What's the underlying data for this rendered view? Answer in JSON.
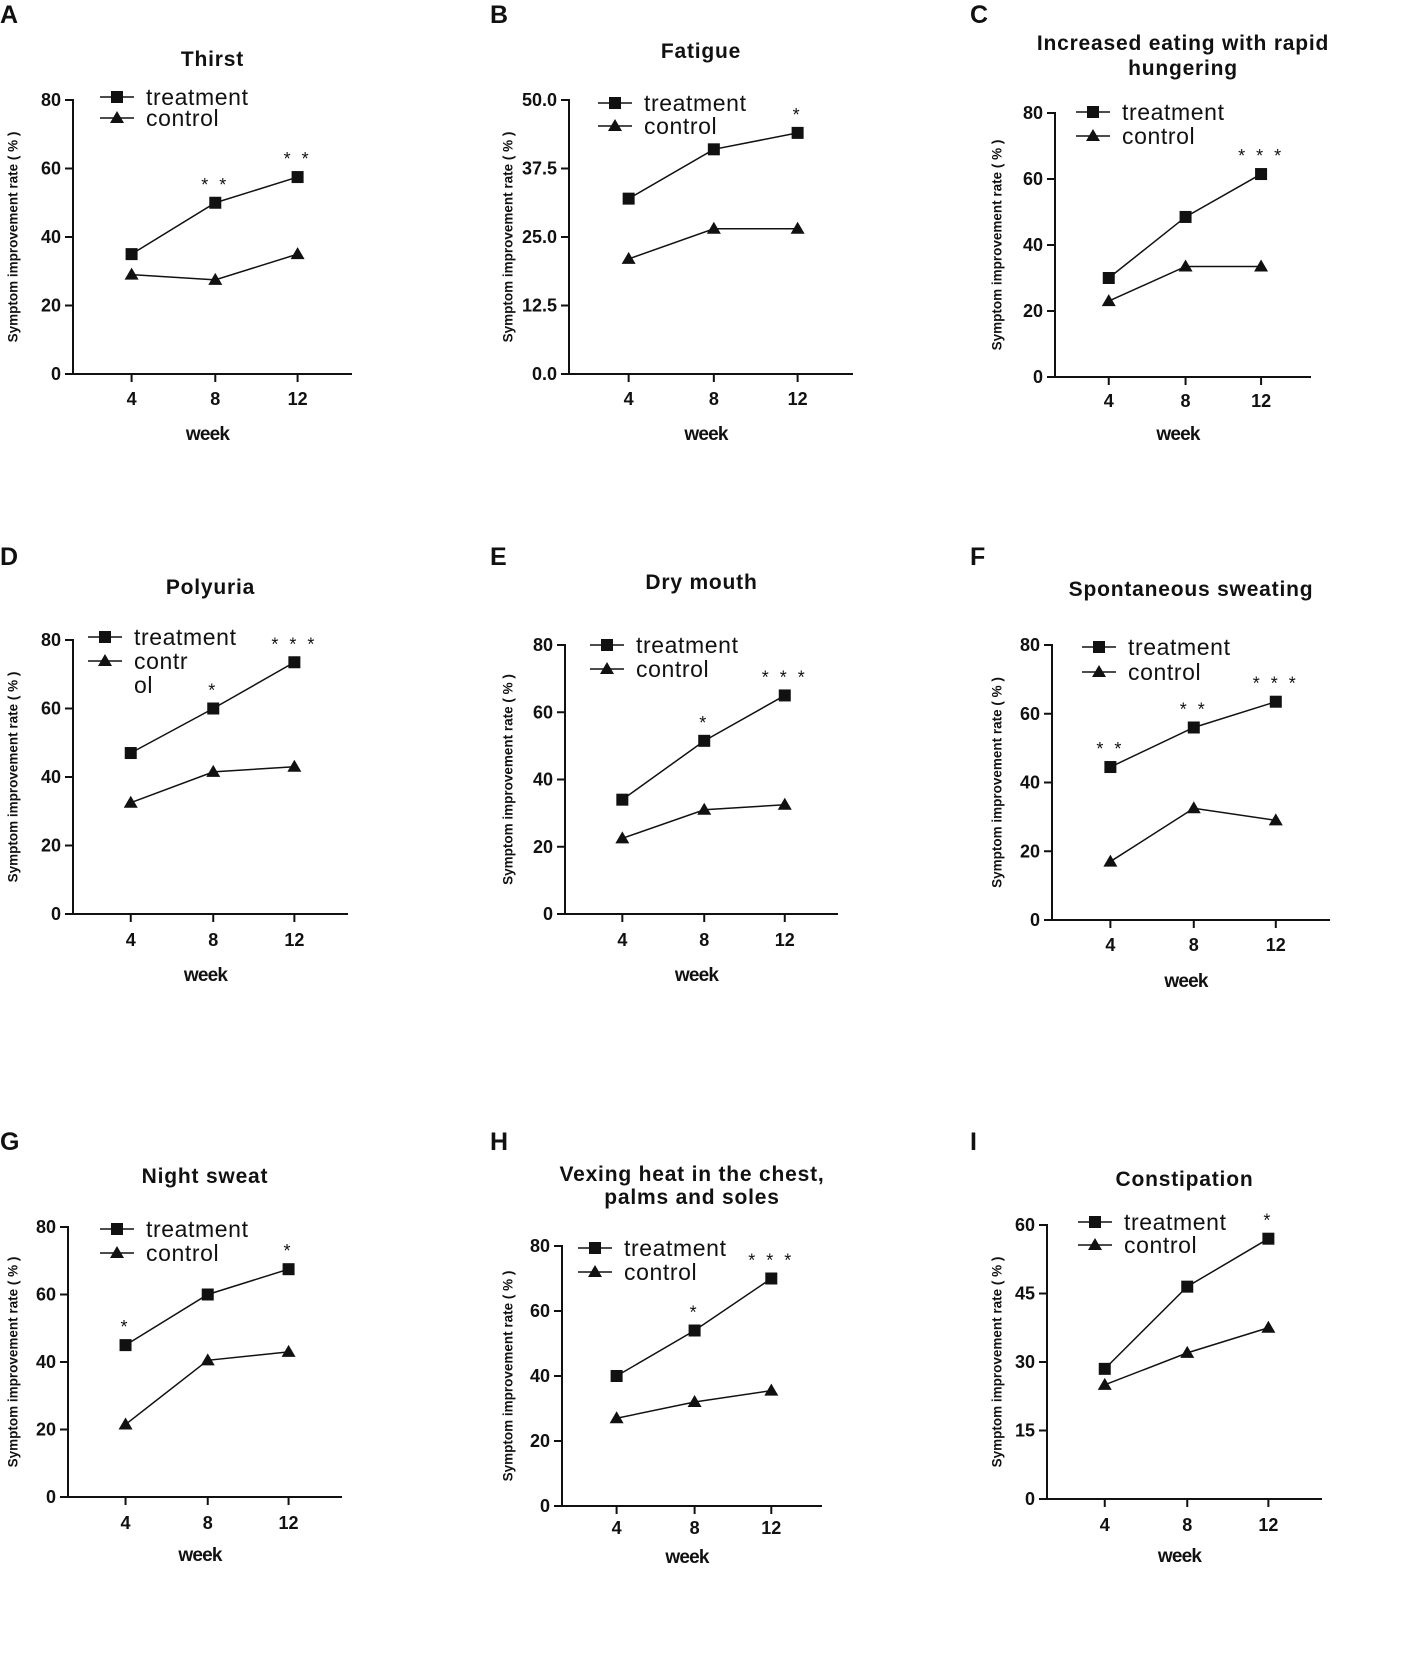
{
  "chart_data": [
    {
      "letter": "A",
      "type": "line",
      "title": [
        "Thirst"
      ],
      "xlabel": "week",
      "ylabel": "Symptom improvement rate ( % )",
      "categories": [
        "4",
        "8",
        "12"
      ],
      "ylim": [
        0,
        80
      ],
      "yticks": [
        "0",
        "20",
        "40",
        "60",
        "80"
      ],
      "legend_placement": "top-left",
      "series": [
        {
          "name": "treatment",
          "marker": "square",
          "values": [
            35,
            50,
            57.5
          ],
          "label_lines": [
            "treatment"
          ]
        },
        {
          "name": "control",
          "marker": "triangle",
          "values": [
            29,
            27.5,
            35
          ],
          "label_lines": [
            "control"
          ]
        }
      ],
      "annotations": [
        "",
        "* *",
        "* *"
      ]
    },
    {
      "letter": "B",
      "type": "line",
      "title": [
        "Fatigue"
      ],
      "xlabel": "week",
      "ylabel": "Symptom improvement rate ( % )",
      "categories": [
        "4",
        "8",
        "12"
      ],
      "ylim": [
        0,
        50
      ],
      "yticks": [
        "0.0",
        "12.5",
        "25.0",
        "37.5",
        "50.0"
      ],
      "legend_placement": "top-left",
      "series": [
        {
          "name": "treatment",
          "marker": "square",
          "values": [
            32,
            41,
            44
          ],
          "label_lines": [
            "treatment"
          ]
        },
        {
          "name": "control",
          "marker": "triangle",
          "values": [
            21,
            26.5,
            26.5
          ],
          "label_lines": [
            "control"
          ]
        }
      ],
      "annotations": [
        "",
        "",
        "*"
      ]
    },
    {
      "letter": "C",
      "type": "line",
      "title": [
        "Increased eating with rapid",
        "hungering"
      ],
      "xlabel": "week",
      "ylabel": "Symptom improvement rate ( % )",
      "categories": [
        "4",
        "8",
        "12"
      ],
      "ylim": [
        0,
        80
      ],
      "yticks": [
        "0",
        "20",
        "40",
        "60",
        "80"
      ],
      "legend_placement": "top-left",
      "series": [
        {
          "name": "treatment",
          "marker": "square",
          "values": [
            30,
            48.5,
            61.5
          ],
          "label_lines": [
            "treatment"
          ]
        },
        {
          "name": "control",
          "marker": "triangle",
          "values": [
            23,
            33.5,
            33.5
          ],
          "label_lines": [
            "control"
          ]
        }
      ],
      "annotations": [
        "",
        "",
        "* * *"
      ]
    },
    {
      "letter": "D",
      "type": "line",
      "title": [
        "Polyuria"
      ],
      "xlabel": "week",
      "ylabel": "Symptom improvement rate ( % )",
      "categories": [
        "4",
        "8",
        "12"
      ],
      "ylim": [
        0,
        80
      ],
      "yticks": [
        "0",
        "20",
        "40",
        "60",
        "80"
      ],
      "legend_placement": "top-left",
      "series": [
        {
          "name": "treatment",
          "marker": "square",
          "values": [
            47,
            60,
            73.5
          ],
          "label_lines": [
            "treatment"
          ]
        },
        {
          "name": "control",
          "marker": "triangle",
          "values": [
            32.5,
            41.5,
            43
          ],
          "label_lines": [
            "contr",
            "ol"
          ]
        }
      ],
      "annotations": [
        "",
        "*",
        "* * *"
      ]
    },
    {
      "letter": "E",
      "type": "line",
      "title": [
        "Dry mouth"
      ],
      "xlabel": "week",
      "ylabel": "Symptom improvement rate ( % )",
      "categories": [
        "4",
        "8",
        "12"
      ],
      "ylim": [
        0,
        80
      ],
      "yticks": [
        "0",
        "20",
        "40",
        "60",
        "80"
      ],
      "legend_placement": "top-left",
      "series": [
        {
          "name": "treatment",
          "marker": "square",
          "values": [
            34,
            51.5,
            65
          ],
          "label_lines": [
            "treatment"
          ]
        },
        {
          "name": "control",
          "marker": "triangle",
          "values": [
            22.5,
            31,
            32.5
          ],
          "label_lines": [
            "control"
          ]
        }
      ],
      "annotations": [
        "",
        "*",
        "* * *"
      ]
    },
    {
      "letter": "F",
      "type": "line",
      "title": [
        "Spontaneous sweating"
      ],
      "xlabel": "week",
      "ylabel": "Symptom improvement rate ( % )",
      "categories": [
        "4",
        "8",
        "12"
      ],
      "ylim": [
        0,
        80
      ],
      "yticks": [
        "0",
        "20",
        "40",
        "60",
        "80"
      ],
      "legend_placement": "top-left",
      "series": [
        {
          "name": "treatment",
          "marker": "square",
          "values": [
            44.5,
            56,
            63.5
          ],
          "label_lines": [
            "treatment"
          ]
        },
        {
          "name": "control",
          "marker": "triangle",
          "values": [
            17,
            32.5,
            29
          ],
          "label_lines": [
            "control"
          ]
        }
      ],
      "annotations": [
        "* *",
        "* *",
        "* * *"
      ]
    },
    {
      "letter": "G",
      "type": "line",
      "title": [
        "Night sweat"
      ],
      "xlabel": "week",
      "ylabel": "Symptom improvement rate ( % )",
      "categories": [
        "4",
        "8",
        "12"
      ],
      "ylim": [
        0,
        80
      ],
      "yticks": [
        "0",
        "20",
        "40",
        "60",
        "80"
      ],
      "legend_placement": "top-left",
      "series": [
        {
          "name": "treatment",
          "marker": "square",
          "values": [
            45,
            60,
            67.5
          ],
          "label_lines": [
            "treatment"
          ]
        },
        {
          "name": "control",
          "marker": "triangle",
          "values": [
            21.5,
            40.5,
            43
          ],
          "label_lines": [
            "control"
          ]
        }
      ],
      "annotations": [
        "*",
        "",
        "*"
      ]
    },
    {
      "letter": "H",
      "type": "line",
      "title": [
        "Vexing heat in the chest,",
        "palms and soles"
      ],
      "xlabel": "week",
      "ylabel": "Symptom improvement rate ( % )",
      "categories": [
        "4",
        "8",
        "12"
      ],
      "ylim": [
        0,
        80
      ],
      "yticks": [
        "0",
        "20",
        "40",
        "60",
        "80"
      ],
      "legend_placement": "top-left",
      "series": [
        {
          "name": "treatment",
          "marker": "square",
          "values": [
            40,
            54,
            70
          ],
          "label_lines": [
            "treatment"
          ]
        },
        {
          "name": "control",
          "marker": "triangle",
          "values": [
            27,
            32,
            35.5
          ],
          "label_lines": [
            "control"
          ]
        }
      ],
      "annotations": [
        "",
        "*",
        "* * *"
      ]
    },
    {
      "letter": "I",
      "type": "line",
      "title": [
        "Constipation"
      ],
      "xlabel": "week",
      "ylabel": "Symptom improvement rate ( % )",
      "categories": [
        "4",
        "8",
        "12"
      ],
      "ylim": [
        0,
        60
      ],
      "yticks": [
        "0",
        "15",
        "30",
        "45",
        "60"
      ],
      "legend_placement": "top-left",
      "series": [
        {
          "name": "treatment",
          "marker": "square",
          "values": [
            28.5,
            46.5,
            57
          ],
          "label_lines": [
            "treatment"
          ]
        },
        {
          "name": "control",
          "marker": "triangle",
          "values": [
            25,
            32,
            37.5
          ],
          "label_lines": [
            "control"
          ]
        }
      ],
      "annotations": [
        "",
        "",
        "*"
      ]
    }
  ]
}
